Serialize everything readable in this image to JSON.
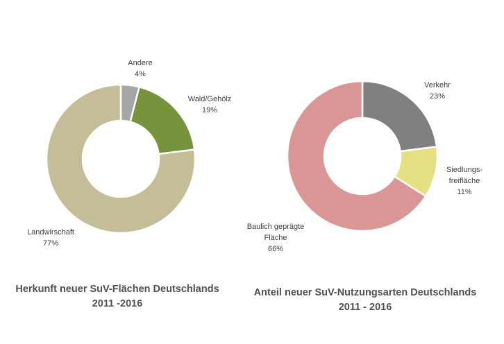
{
  "chart_data": [
    {
      "type": "pie",
      "style": "donut",
      "title": "Herkunft neuer SuV-Flächen Deutschlands",
      "subtitle": "2011 -2016",
      "slices": [
        {
          "label": "Andere",
          "value": 4,
          "value_label": "4%",
          "color": "#A6A6A6"
        },
        {
          "label": "Wald/Gehölz",
          "value": 19,
          "value_label": "19%",
          "color": "#77933C"
        },
        {
          "label": "Landwirschaft",
          "value": 77,
          "value_label": "77%",
          "color": "#C4BD97"
        }
      ]
    },
    {
      "type": "pie",
      "style": "donut",
      "title": "Anteil neuer SuV-Nutzungsarten Deutschlands",
      "subtitle": "2011 - 2016",
      "slices": [
        {
          "label": "Verkehr",
          "value": 23,
          "value_label": "23%",
          "color": "#808080"
        },
        {
          "label": "Siedlungs-freifläche",
          "label_lines": [
            "Siedlungs-",
            "freifläche"
          ],
          "value": 11,
          "value_label": "11%",
          "color": "#E6E085"
        },
        {
          "label": "Baulich geprägte Fläche",
          "label_lines": [
            "Baulich geprägte",
            "Fläche"
          ],
          "value": 66,
          "value_label": "66%",
          "color": "#D99694"
        }
      ]
    }
  ]
}
